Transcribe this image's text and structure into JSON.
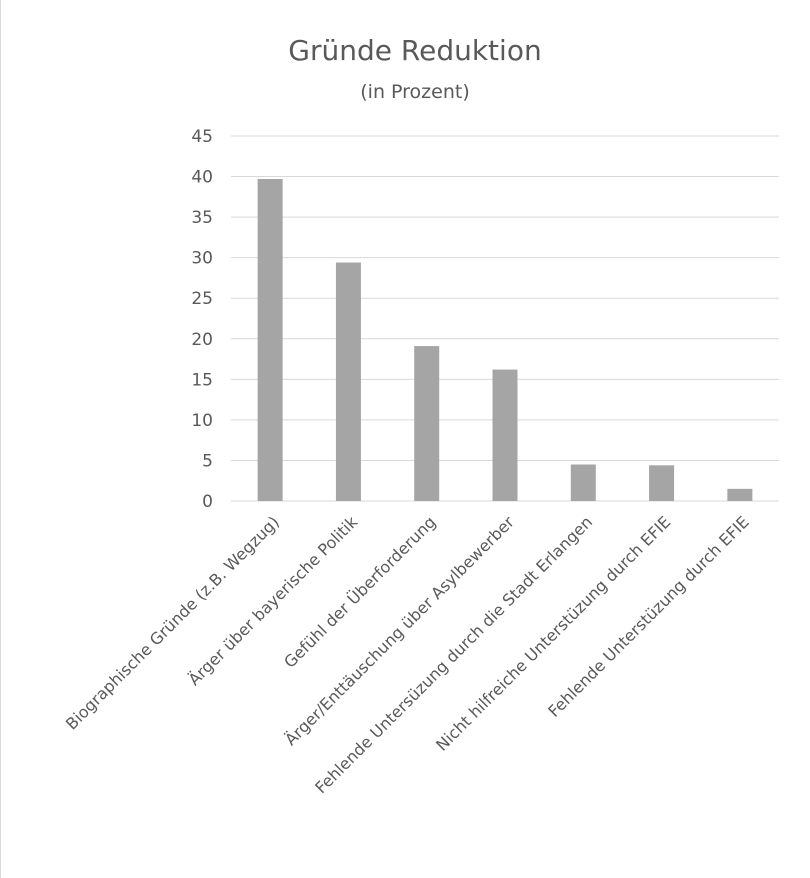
{
  "chart_data": {
    "type": "bar",
    "title": "Gründe Reduktion",
    "subtitle": "(in Prozent)",
    "xlabel": "",
    "ylabel": "",
    "ylim": [
      0,
      45
    ],
    "yticks": [
      0,
      5,
      10,
      15,
      20,
      25,
      30,
      35,
      40,
      45
    ],
    "grid": true,
    "legend": "none",
    "categories": [
      "Biographische Gründe (z.B. Wegzug)",
      "Ärger über bayerische Politik",
      "Gefühl der Überforderung",
      "Ärger/Enttäuschung über Asylbewerber",
      "Fehlende Untersüzung durch die Stadt Erlangen",
      "Nicht hilfreiche Unterstüzung durch EFIE",
      "Fehlende Unterstüzung durch EFIE"
    ],
    "values": [
      39.7,
      29.4,
      19.1,
      16.2,
      4.5,
      4.4,
      1.5
    ],
    "colors": {
      "bar": "#a5a5a5",
      "grid": "#d9d9d9",
      "text": "#595959"
    }
  }
}
